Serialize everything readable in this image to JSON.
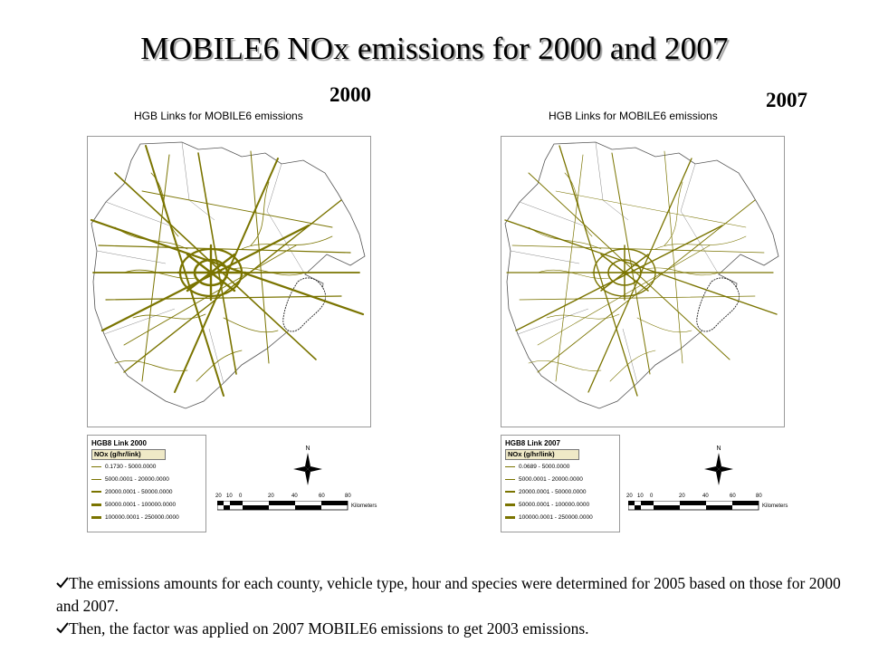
{
  "title": "MOBILE6 NOx emissions for 2000 and 2007",
  "panels": [
    {
      "year": "2000",
      "map_title": "HGB Links for MOBILE6 emissions",
      "legend": {
        "title": "HGB8 Link 2000",
        "field": "NOx (g/hr/link)",
        "classes": [
          "0.1730 - 5000.0000",
          "5000.0001 - 20000.0000",
          "20000.0001 - 50000.0000",
          "50000.0001 - 100000.0000",
          "100000.0001 - 250000.0000"
        ]
      },
      "north_label": "N",
      "scale": {
        "ticks": [
          "20",
          "10",
          "0",
          "20",
          "40",
          "60",
          "80"
        ],
        "unit": "Kilometers"
      },
      "road_color": "#7a7400"
    },
    {
      "year": "2007",
      "map_title": "HGB Links for MOBILE6 emissions",
      "legend": {
        "title": "HGB8 Link 2007",
        "field": "NOx (g/hr/link)",
        "classes": [
          "0.0689 - 5000.0000",
          "5000.0001 - 20000.0000",
          "20000.0001 - 50000.0000",
          "50000.0001 - 100000.0000",
          "100000.0001 - 250000.0000"
        ]
      },
      "north_label": "N",
      "scale": {
        "ticks": [
          "20",
          "10",
          "0",
          "20",
          "40",
          "60",
          "80"
        ],
        "unit": "Kilometers"
      },
      "road_color": "#7a7400"
    }
  ],
  "notes": [
    "The emissions amounts for each county, vehicle type, hour and  species were determined for 2005 based on those for 2000 and 2007.",
    "Then, the factor was applied on 2007 MOBILE6 emissions to get 2003 emissions."
  ],
  "bullet_icon": "checkmark-icon"
}
